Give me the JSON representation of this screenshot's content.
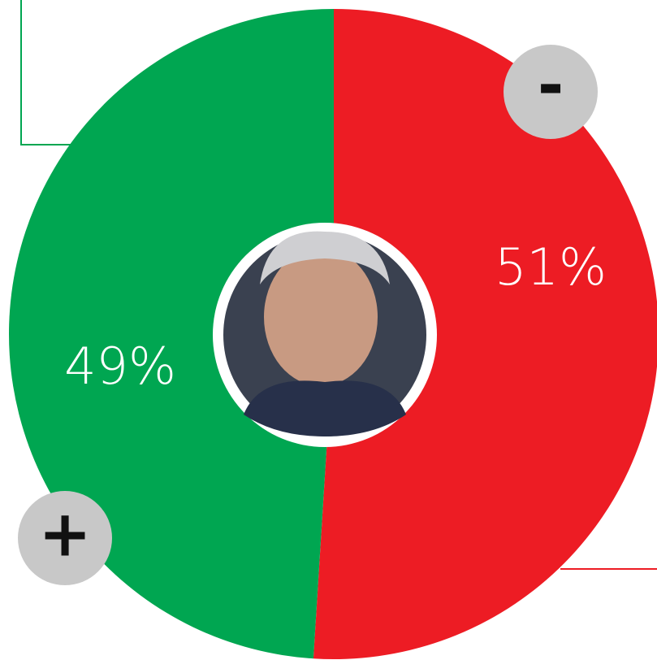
{
  "chart_data": {
    "type": "pie",
    "values": [
      51,
      49
    ],
    "value_labels": [
      "51%",
      "49%"
    ],
    "colors": [
      "#ed1c24",
      "#00a651"
    ]
  },
  "controls": {
    "minus": "-",
    "plus": "+"
  }
}
